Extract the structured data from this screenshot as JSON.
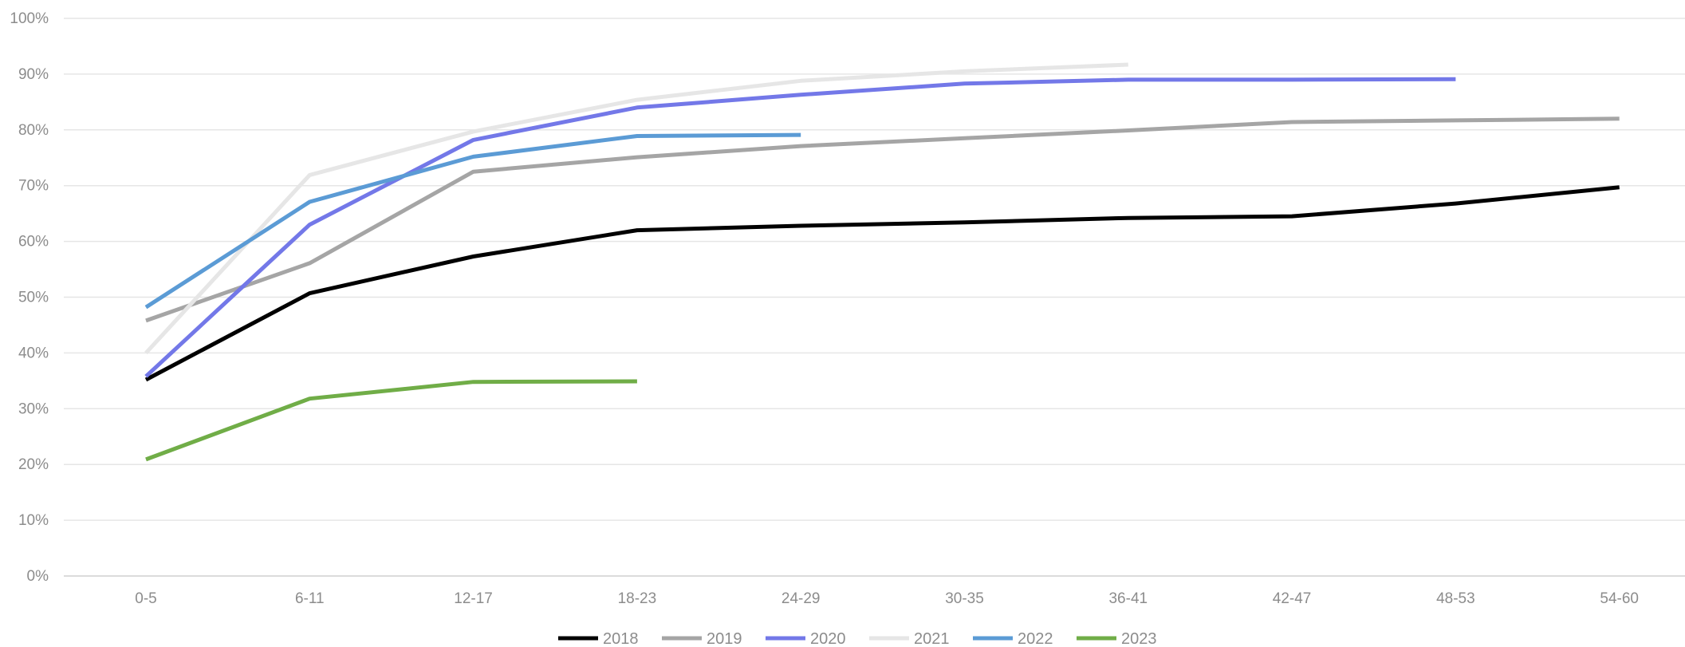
{
  "chart_data": {
    "type": "line",
    "title": "",
    "xlabel": "",
    "ylabel": "",
    "categories": [
      "0-5",
      "6-11",
      "12-17",
      "18-23",
      "24-29",
      "30-35",
      "36-41",
      "42-47",
      "48-53",
      "54-60"
    ],
    "ylim": [
      0,
      100
    ],
    "y_ticks": [
      0,
      10,
      20,
      30,
      40,
      50,
      60,
      70,
      80,
      90,
      100
    ],
    "y_tick_labels": [
      "0%",
      "10%",
      "20%",
      "30%",
      "40%",
      "50%",
      "60%",
      "70%",
      "80%",
      "90%",
      "100%"
    ],
    "grid": true,
    "legend_position": "bottom",
    "series": [
      {
        "name": "2018",
        "color": "#000000",
        "values": [
          35.2,
          50.7,
          57.3,
          62.0,
          62.8,
          63.4,
          64.2,
          64.5,
          66.8,
          69.7
        ]
      },
      {
        "name": "2019",
        "color": "#a5a5a5",
        "values": [
          45.8,
          56.1,
          72.5,
          75.1,
          77.1,
          78.5,
          79.9,
          81.4,
          81.7,
          82.0
        ]
      },
      {
        "name": "2020",
        "color": "#7378e8",
        "values": [
          35.8,
          63.0,
          78.2,
          84.0,
          86.3,
          88.3,
          89.0,
          89.0,
          89.1,
          null
        ]
      },
      {
        "name": "2021",
        "color": "#e6e6e6",
        "values": [
          40.0,
          71.9,
          79.7,
          85.4,
          88.8,
          90.5,
          91.7,
          null,
          null,
          null
        ]
      },
      {
        "name": "2022",
        "color": "#5b9bd5",
        "values": [
          48.2,
          67.1,
          75.2,
          78.9,
          79.1,
          null,
          null,
          null,
          null,
          null
        ]
      },
      {
        "name": "2023",
        "color": "#70ad47",
        "values": [
          20.9,
          31.8,
          34.8,
          34.9,
          null,
          null,
          null,
          null,
          null,
          null
        ]
      }
    ]
  }
}
